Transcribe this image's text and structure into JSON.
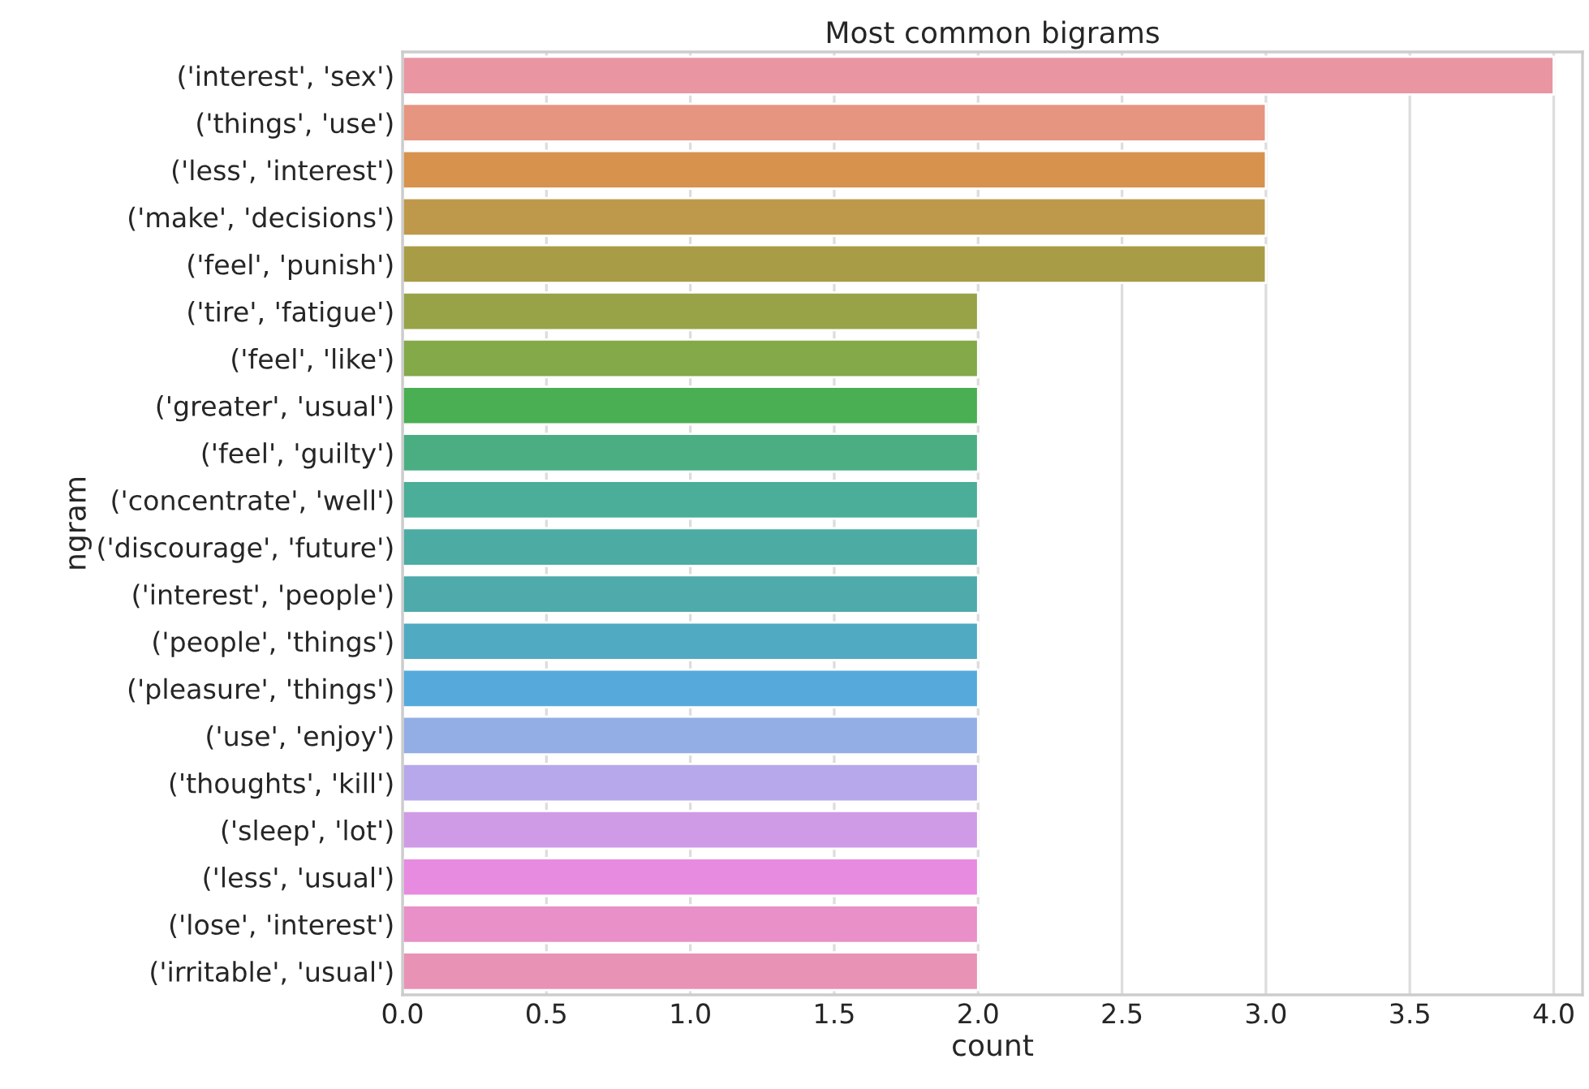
{
  "chart_data": {
    "type": "bar",
    "orientation": "horizontal",
    "title": "Most common bigrams",
    "xlabel": "count",
    "ylabel": "ngram",
    "categories": [
      "('interest', 'sex')",
      "('things', 'use')",
      "('less', 'interest')",
      "('make', 'decisions')",
      "('feel', 'punish')",
      "('tire', 'fatigue')",
      "('feel', 'like')",
      "('greater', 'usual')",
      "('feel', 'guilty')",
      "('concentrate', 'well')",
      "('discourage', 'future')",
      "('interest', 'people')",
      "('people', 'things')",
      "('pleasure', 'things')",
      "('use', 'enjoy')",
      "('thoughts', 'kill')",
      "('sleep', 'lot')",
      "('less', 'usual')",
      "('lose', 'interest')",
      "('irritable', 'usual')"
    ],
    "values": [
      4,
      3,
      3,
      3,
      3,
      2,
      2,
      2,
      2,
      2,
      2,
      2,
      2,
      2,
      2,
      2,
      2,
      2,
      2,
      2
    ],
    "colors": [
      "#e995a2",
      "#e69581",
      "#d7924d",
      "#be994b",
      "#a99c46",
      "#98a348",
      "#83a948",
      "#4aae52",
      "#4aae82",
      "#4aae98",
      "#4cacA4",
      "#4eaaab",
      "#50aac1",
      "#55aadb",
      "#93aee5",
      "#b6a8eb",
      "#cf9be6",
      "#e78be1",
      "#e990c8",
      "#e893b5"
    ],
    "xlim": [
      0,
      4.1
    ],
    "xticks": [
      {
        "value": 0,
        "label": "0.0"
      },
      {
        "value": 0.5,
        "label": "0.5"
      },
      {
        "value": 1,
        "label": "1.0"
      },
      {
        "value": 1.5,
        "label": "1.5"
      },
      {
        "value": 2,
        "label": "2.0"
      },
      {
        "value": 2.5,
        "label": "2.5"
      },
      {
        "value": 3,
        "label": "3.0"
      },
      {
        "value": 3.5,
        "label": "3.5"
      },
      {
        "value": 4,
        "label": "4.0"
      }
    ],
    "grid": "x"
  }
}
